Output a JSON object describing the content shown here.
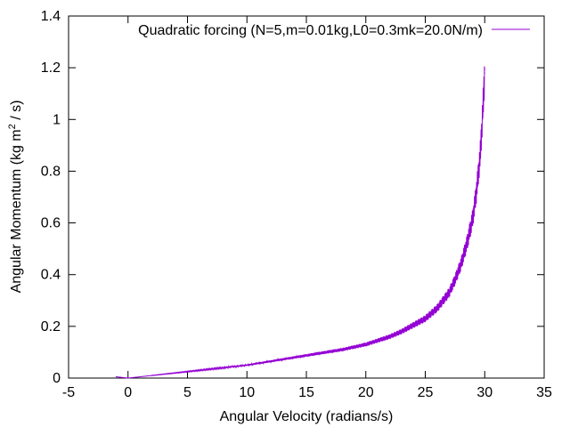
{
  "chart_data": {
    "type": "line",
    "xlabel": "Angular Velocity (radians/s)",
    "ylabel_prefix": "Angular Momentum (kg m",
    "ylabel_sup": "2",
    "ylabel_suffix": " / s)",
    "xlim": [
      -5,
      35
    ],
    "ylim": [
      0,
      1.4
    ],
    "xticks": [
      -5,
      0,
      5,
      10,
      15,
      20,
      25,
      30,
      35
    ],
    "xtick_labels": [
      "-5",
      "0",
      "5",
      "10",
      "15",
      "20",
      "25",
      "30",
      "35"
    ],
    "yticks": [
      0,
      0.2,
      0.4,
      0.6,
      0.8,
      1.0,
      1.2,
      1.4
    ],
    "ytick_labels": [
      "0",
      "0.2",
      "0.4",
      "0.6",
      "0.8",
      "1",
      "1.2",
      "1.4"
    ],
    "grid": false,
    "legend_position": "top-right",
    "series": [
      {
        "name": "Quadratic forcing (N=5,m=0.01kg,L0=0.3mk=20.0N/m)",
        "color": "#9400D3",
        "x": [
          -1.0,
          0.0,
          2.0,
          4.0,
          6.0,
          8.0,
          10.0,
          12.0,
          14.0,
          16.0,
          18.0,
          20.0,
          21.0,
          22.0,
          23.0,
          24.0,
          25.0,
          26.0,
          27.0,
          27.5,
          28.0,
          28.5,
          29.0,
          29.3,
          29.6,
          29.8,
          30.0
        ],
        "y": [
          0.005,
          0.0,
          0.01,
          0.02,
          0.03,
          0.04,
          0.05,
          0.065,
          0.08,
          0.095,
          0.11,
          0.13,
          0.145,
          0.16,
          0.18,
          0.205,
          0.23,
          0.27,
          0.33,
          0.38,
          0.44,
          0.52,
          0.62,
          0.72,
          0.85,
          1.0,
          1.18
        ]
      }
    ]
  }
}
